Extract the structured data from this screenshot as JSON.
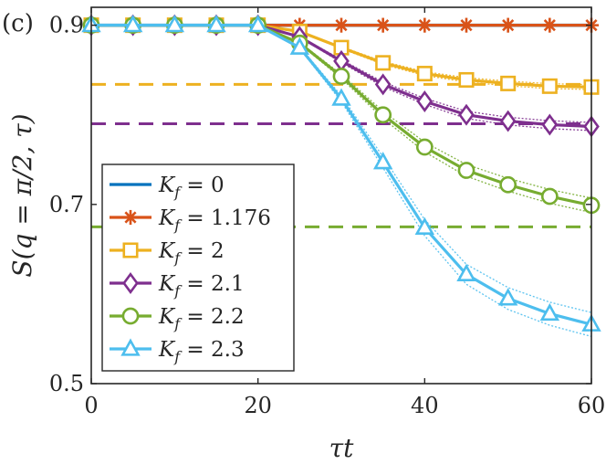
{
  "chart_data": {
    "type": "line",
    "panel_label": "(c)",
    "xlabel": "τt",
    "ylabel": "S(q = π/2, τ)",
    "xlim": [
      0,
      60
    ],
    "ylim": [
      0.5,
      0.92
    ],
    "xticks": [
      0,
      20,
      40,
      60
    ],
    "yticks": [
      0.5,
      0.7,
      0.9
    ],
    "xtick_labels": [
      "0",
      "20",
      "40",
      "60"
    ],
    "ytick_labels": [
      "0.5",
      "0.7",
      "0.9"
    ],
    "legend_position": "bottom-left",
    "x": [
      0,
      5,
      10,
      15,
      20,
      25,
      30,
      35,
      40,
      45,
      50,
      55,
      60
    ],
    "series": [
      {
        "name": "K_f = 0",
        "label": "K",
        "sub": "f",
        "value": "= 0",
        "color": "#0072BD",
        "marker": "none",
        "values": [
          0.9,
          0.9,
          0.9,
          0.9,
          0.9,
          0.9,
          0.9,
          0.9,
          0.9,
          0.9,
          0.9,
          0.9,
          0.9
        ]
      },
      {
        "name": "K_f = 1.176",
        "label": "K",
        "sub": "f",
        "value": "= 1.176",
        "color": "#D95319",
        "marker": "asterisk",
        "values": [
          0.9,
          0.9,
          0.9,
          0.9,
          0.9,
          0.9,
          0.9,
          0.9,
          0.9,
          0.9,
          0.9,
          0.9,
          0.9
        ]
      },
      {
        "name": "K_f = 2",
        "label": "K",
        "sub": "f",
        "value": "= 2",
        "color": "#EDB120",
        "marker": "square",
        "values": [
          0.9,
          0.9,
          0.9,
          0.9,
          0.9,
          0.893,
          0.875,
          0.858,
          0.846,
          0.839,
          0.835,
          0.832,
          0.831
        ]
      },
      {
        "name": "K_f = 2.1",
        "label": "K",
        "sub": "f",
        "value": "= 2.1",
        "color": "#7E2F8E",
        "marker": "diamond",
        "values": [
          0.9,
          0.9,
          0.9,
          0.9,
          0.9,
          0.887,
          0.86,
          0.834,
          0.815,
          0.8,
          0.793,
          0.789,
          0.787
        ]
      },
      {
        "name": "K_f = 2.2",
        "label": "K",
        "sub": "f",
        "value": "= 2.2",
        "color": "#77AC30",
        "marker": "circle",
        "values": [
          0.9,
          0.9,
          0.9,
          0.9,
          0.9,
          0.88,
          0.843,
          0.8,
          0.764,
          0.738,
          0.722,
          0.709,
          0.699
        ]
      },
      {
        "name": "K_f = 2.3",
        "label": "K",
        "sub": "f",
        "value": "= 2.3",
        "color": "#4DBEEE",
        "marker": "triangle",
        "values": [
          0.9,
          0.9,
          0.9,
          0.9,
          0.9,
          0.875,
          0.818,
          0.747,
          0.674,
          0.622,
          0.595,
          0.578,
          0.566
        ]
      }
    ],
    "reference_lines": [
      {
        "name": "K_f = 2 equilibrium",
        "color": "#EDB120",
        "y": 0.834
      },
      {
        "name": "K_f = 2.1 equilibrium",
        "color": "#7E2F8E",
        "y": 0.79
      },
      {
        "name": "K_f = 2.2 equilibrium",
        "color": "#77AC30",
        "y": 0.675
      }
    ]
  }
}
